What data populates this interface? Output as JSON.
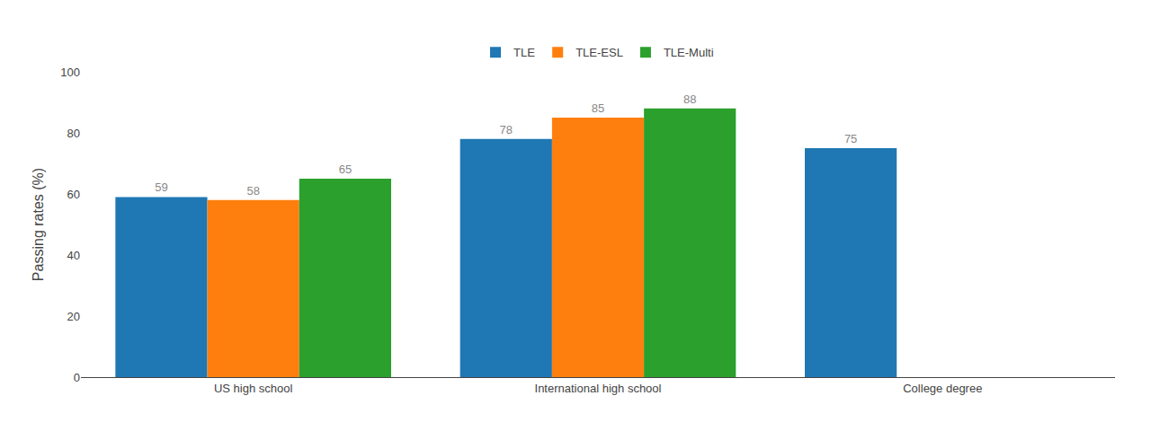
{
  "chart_data": {
    "type": "bar",
    "categories": [
      "US high school",
      "International high school",
      "College degree"
    ],
    "series": [
      {
        "name": "TLE",
        "values": [
          59,
          78,
          75
        ]
      },
      {
        "name": "TLE-ESL",
        "values": [
          58,
          85,
          null
        ]
      },
      {
        "name": "TLE-Multi",
        "values": [
          65,
          88,
          null
        ]
      }
    ],
    "ylabel": "Passing rates (%)",
    "ylim": [
      0,
      100
    ],
    "yticks": [
      0,
      20,
      40,
      60,
      80,
      100
    ],
    "grid": false,
    "legend": "top",
    "data_labels": true
  }
}
